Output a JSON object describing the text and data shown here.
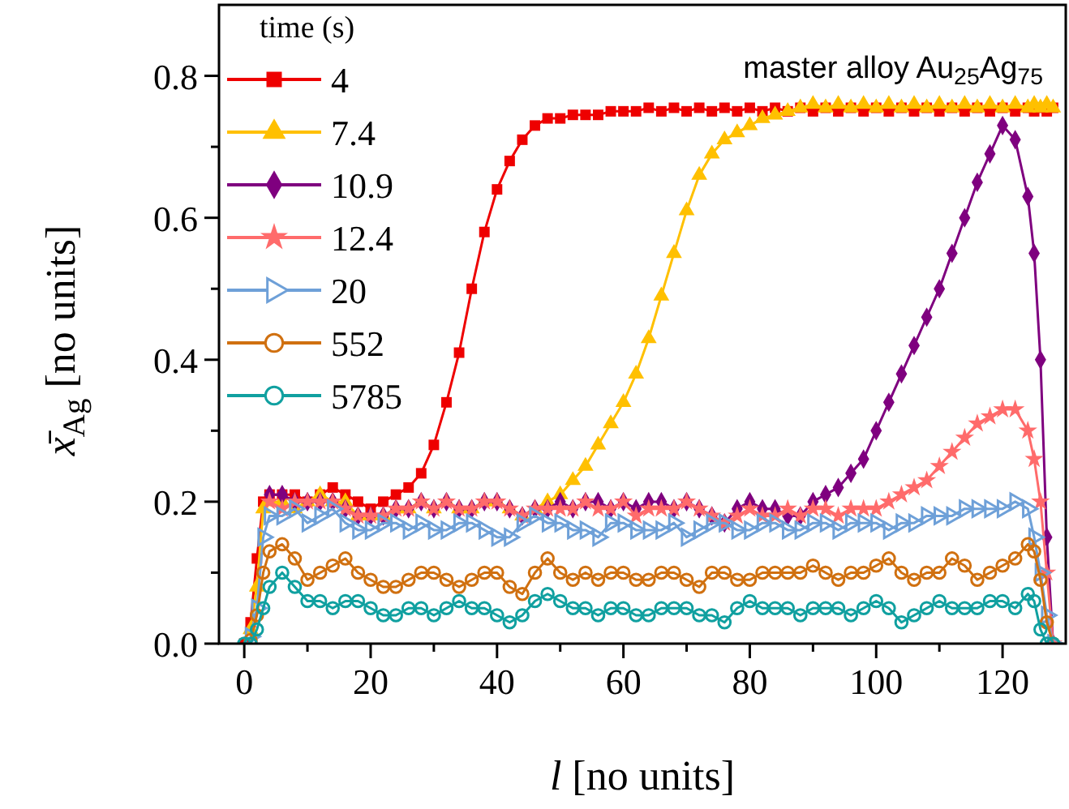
{
  "chart_data": {
    "type": "line",
    "xlabel": "l [no units]",
    "ylabel": "x̄$_{Ag}$ [no units]",
    "legend_title": "time (s)",
    "legend": "top left",
    "grid": false,
    "annotations": [
      "master alloy Au$_{25}$Ag$_{75}$"
    ],
    "xlim": [
      -4,
      130
    ],
    "xticks": [
      0,
      {
        "value": 10,
        "label": null
      },
      20,
      {
        "value": 30,
        "label": null
      },
      40,
      {
        "value": 50,
        "label": null
      },
      60,
      {
        "value": 70,
        "label": null
      },
      80,
      {
        "value": 90,
        "label": null
      },
      100,
      {
        "value": 110,
        "label": null
      },
      120
    ],
    "ylim": [
      0,
      0.9
    ],
    "yticks": [
      {
        "value": 0,
        "label": "0.0"
      },
      {
        "value": 0.1,
        "label": null
      },
      0.2,
      {
        "value": 0.3,
        "label": null
      },
      0.4,
      {
        "value": 0.5,
        "label": null
      },
      0.6,
      {
        "value": 0.7,
        "label": null
      },
      0.8
    ],
    "x": [
      0,
      1,
      2,
      3,
      4,
      6,
      8,
      10,
      12,
      14,
      16,
      18,
      20,
      22,
      24,
      26,
      28,
      30,
      32,
      34,
      36,
      38,
      40,
      42,
      44,
      46,
      48,
      50,
      52,
      54,
      56,
      58,
      60,
      62,
      64,
      66,
      68,
      70,
      72,
      74,
      76,
      78,
      80,
      82,
      84,
      86,
      88,
      90,
      92,
      94,
      96,
      98,
      100,
      102,
      104,
      106,
      108,
      110,
      112,
      114,
      116,
      118,
      120,
      122,
      124,
      125,
      126,
      127,
      128
    ],
    "series": [
      {
        "name": "4",
        "color": "#ee0000",
        "marker": "square",
        "values": [
          0,
          0.03,
          0.12,
          0.2,
          0.21,
          0.21,
          0.21,
          0.2,
          0.21,
          0.22,
          0.21,
          0.2,
          0.19,
          0.2,
          0.21,
          0.22,
          0.24,
          0.28,
          0.34,
          0.41,
          0.5,
          0.58,
          0.64,
          0.68,
          0.71,
          0.73,
          0.74,
          0.74,
          0.745,
          0.745,
          0.745,
          0.75,
          0.75,
          0.75,
          0.755,
          0.75,
          0.755,
          0.75,
          0.755,
          0.75,
          0.755,
          0.75,
          0.755,
          0.75,
          0.755,
          0.75,
          0.755,
          0.75,
          0.755,
          0.75,
          0.755,
          0.75,
          0.755,
          0.75,
          0.755,
          0.75,
          0.755,
          0.75,
          0.755,
          0.75,
          0.755,
          0.75,
          0.755,
          0.75,
          0.755,
          0.75,
          0.755,
          0.75,
          0.755
        ]
      },
      {
        "name": "7.4",
        "color": "#ffc000",
        "marker": "triangle",
        "values": [
          null,
          0.02,
          0.08,
          0.19,
          0.2,
          0.2,
          0.19,
          0.2,
          0.21,
          0.2,
          0.2,
          0.18,
          0.18,
          0.18,
          0.19,
          0.19,
          0.2,
          0.19,
          0.2,
          0.19,
          0.19,
          0.2,
          0.2,
          0.19,
          0.18,
          0.19,
          0.2,
          0.21,
          0.23,
          0.25,
          0.28,
          0.31,
          0.34,
          0.38,
          0.43,
          0.49,
          0.55,
          0.61,
          0.66,
          0.69,
          0.71,
          0.72,
          0.73,
          0.74,
          0.745,
          0.75,
          0.755,
          0.76,
          0.755,
          0.76,
          0.755,
          0.76,
          0.755,
          0.76,
          0.755,
          0.76,
          0.755,
          0.76,
          0.755,
          0.76,
          0.755,
          0.76,
          0.755,
          0.76,
          0.755,
          0.76,
          0.755,
          0.76,
          0.755
        ]
      },
      {
        "name": "10.9",
        "color": "#7f007f",
        "marker": "diamond",
        "values": [
          null,
          null,
          null,
          null,
          0.21,
          0.21,
          0.2,
          0.2,
          0.2,
          0.2,
          0.19,
          0.18,
          0.18,
          0.18,
          0.19,
          0.19,
          0.2,
          0.19,
          0.2,
          0.19,
          0.19,
          0.2,
          0.2,
          0.19,
          0.18,
          0.19,
          0.19,
          0.2,
          0.19,
          0.2,
          0.2,
          0.19,
          0.2,
          0.19,
          0.2,
          0.2,
          0.19,
          0.2,
          0.19,
          0.18,
          0.17,
          0.19,
          0.2,
          0.19,
          0.19,
          0.18,
          0.18,
          0.2,
          0.21,
          0.22,
          0.24,
          0.26,
          0.3,
          0.34,
          0.38,
          0.42,
          0.46,
          0.5,
          0.55,
          0.6,
          0.65,
          0.69,
          0.73,
          0.71,
          0.63,
          0.55,
          0.4,
          0.15,
          0
        ]
      },
      {
        "name": "12.4",
        "color": "#ff6b6b",
        "marker": "star",
        "values": [
          null,
          null,
          null,
          null,
          0.2,
          0.19,
          0.2,
          0.2,
          0.2,
          0.2,
          0.19,
          0.18,
          0.18,
          0.18,
          0.19,
          0.19,
          0.2,
          0.19,
          0.2,
          0.19,
          0.19,
          0.2,
          0.2,
          0.19,
          0.18,
          0.19,
          0.19,
          0.19,
          0.19,
          0.2,
          0.19,
          0.19,
          0.2,
          0.18,
          0.19,
          0.19,
          0.19,
          0.2,
          0.19,
          0.18,
          0.17,
          0.18,
          0.19,
          0.18,
          0.18,
          0.19,
          0.18,
          0.19,
          0.19,
          0.18,
          0.19,
          0.19,
          0.19,
          0.2,
          0.21,
          0.22,
          0.23,
          0.25,
          0.27,
          0.29,
          0.31,
          0.32,
          0.33,
          0.33,
          0.3,
          0.26,
          0.2,
          0.1,
          0
        ]
      },
      {
        "name": "20",
        "color": "#6ea0d8",
        "marker": "triangle",
        "values": [
          null,
          0.01,
          0.05,
          0.15,
          0.18,
          0.18,
          0.19,
          0.17,
          0.18,
          0.19,
          0.17,
          0.16,
          0.16,
          0.17,
          0.17,
          0.16,
          0.17,
          0.16,
          0.16,
          0.17,
          0.17,
          0.16,
          0.15,
          0.15,
          0.17,
          0.18,
          0.17,
          0.17,
          0.16,
          0.16,
          0.15,
          0.17,
          0.17,
          0.16,
          0.16,
          0.16,
          0.17,
          0.15,
          0.16,
          0.17,
          0.17,
          0.16,
          0.16,
          0.17,
          0.17,
          0.16,
          0.16,
          0.17,
          0.17,
          0.16,
          0.17,
          0.17,
          0.17,
          0.16,
          0.17,
          0.17,
          0.18,
          0.18,
          0.18,
          0.19,
          0.19,
          0.19,
          0.19,
          0.2,
          0.19,
          0.15,
          0.1,
          0.04,
          0
        ]
      },
      {
        "name": "552",
        "color": "#d07010",
        "marker": "circle",
        "values": [
          null,
          0.005,
          0.04,
          0.1,
          0.13,
          0.14,
          0.12,
          0.09,
          0.1,
          0.11,
          0.12,
          0.1,
          0.09,
          0.08,
          0.08,
          0.09,
          0.1,
          0.1,
          0.09,
          0.08,
          0.09,
          0.1,
          0.1,
          0.08,
          0.07,
          0.1,
          0.12,
          0.1,
          0.09,
          0.1,
          0.09,
          0.1,
          0.1,
          0.09,
          0.09,
          0.1,
          0.1,
          0.09,
          0.08,
          0.1,
          0.1,
          0.09,
          0.09,
          0.1,
          0.1,
          0.1,
          0.1,
          0.11,
          0.1,
          0.09,
          0.1,
          0.1,
          0.11,
          0.12,
          0.1,
          0.09,
          0.1,
          0.1,
          0.12,
          0.11,
          0.09,
          0.1,
          0.11,
          0.12,
          0.14,
          0.13,
          0.09,
          0.03,
          0
        ]
      },
      {
        "name": "5785",
        "color": "#10a0a0",
        "marker": "circle",
        "values": [
          0,
          0,
          0.02,
          0.05,
          0.08,
          0.1,
          0.08,
          0.06,
          0.06,
          0.05,
          0.06,
          0.06,
          0.05,
          0.04,
          0.04,
          0.05,
          0.05,
          0.04,
          0.05,
          0.06,
          0.05,
          0.05,
          0.04,
          0.03,
          0.04,
          0.06,
          0.07,
          0.06,
          0.05,
          0.05,
          0.04,
          0.05,
          0.05,
          0.04,
          0.04,
          0.05,
          0.05,
          0.05,
          0.04,
          0.04,
          0.03,
          0.05,
          0.06,
          0.05,
          0.05,
          0.05,
          0.04,
          0.05,
          0.05,
          0.05,
          0.04,
          0.05,
          0.06,
          0.05,
          0.03,
          0.04,
          0.05,
          0.06,
          0.05,
          0.05,
          0.05,
          0.06,
          0.06,
          0.05,
          0.07,
          0.06,
          0.02,
          0,
          0
        ]
      }
    ]
  }
}
